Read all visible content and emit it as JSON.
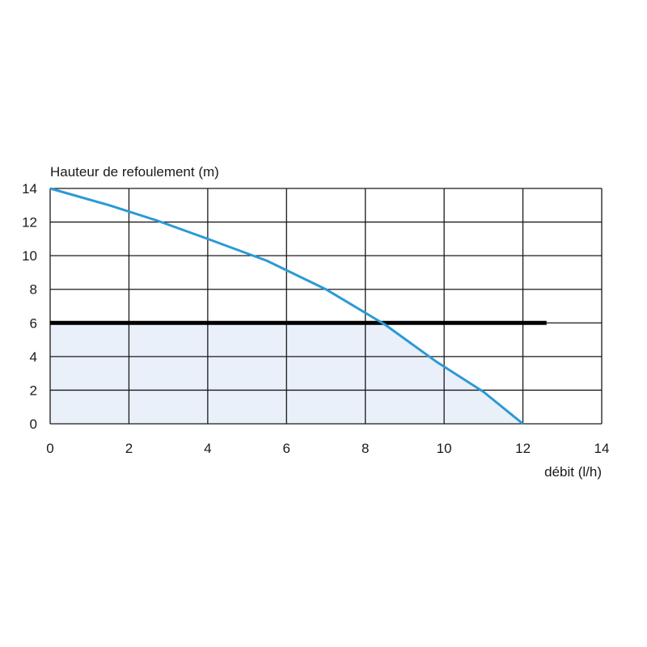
{
  "chart_data": {
    "type": "line",
    "title": "",
    "xlabel": "débit (l/h)",
    "ylabel": "Hauteur de refoulement (m)",
    "xlim": [
      0,
      14
    ],
    "ylim": [
      0,
      14
    ],
    "xticks": [
      0,
      2,
      4,
      6,
      8,
      10,
      12,
      14
    ],
    "yticks": [
      0,
      2,
      4,
      6,
      8,
      10,
      12,
      14
    ],
    "grid": true,
    "series": [
      {
        "color": "#2b9ad6",
        "points": [
          [
            0,
            14
          ],
          [
            1.5,
            13.0
          ],
          [
            2.7,
            12.1
          ],
          [
            4,
            11.0
          ],
          [
            5.5,
            9.7
          ],
          [
            7,
            8.0
          ],
          [
            8.5,
            5.9
          ],
          [
            9.8,
            3.7
          ],
          [
            11,
            1.9
          ],
          [
            12,
            0
          ]
        ]
      }
    ],
    "reference_line": {
      "y": 6,
      "x_range": [
        0,
        12.6
      ],
      "color": "#000000"
    },
    "shaded_region": {
      "fill": "#e9f0f9",
      "y_max": 6
    }
  }
}
